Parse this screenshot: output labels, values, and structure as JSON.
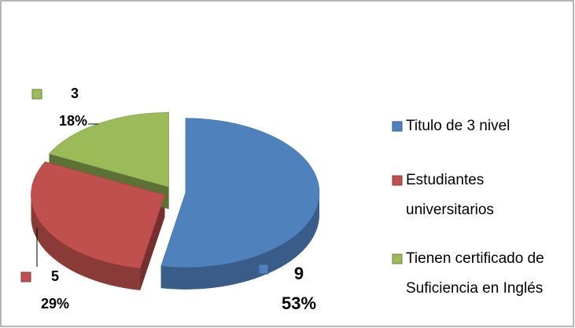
{
  "chart_data": {
    "type": "pie3d",
    "categories": [
      "Titulo de 3 nivel",
      "Estudiantes universitarios",
      "Tienen certificado de Suficiencia en Inglés"
    ],
    "values": [
      9,
      5,
      3
    ],
    "percent_values": [
      53,
      29,
      18
    ],
    "percent_labels": [
      "53%",
      "29%",
      "18%"
    ],
    "colors": [
      "#4f81bd",
      "#c0504d",
      "#9bbb59"
    ],
    "legend": "right"
  }
}
